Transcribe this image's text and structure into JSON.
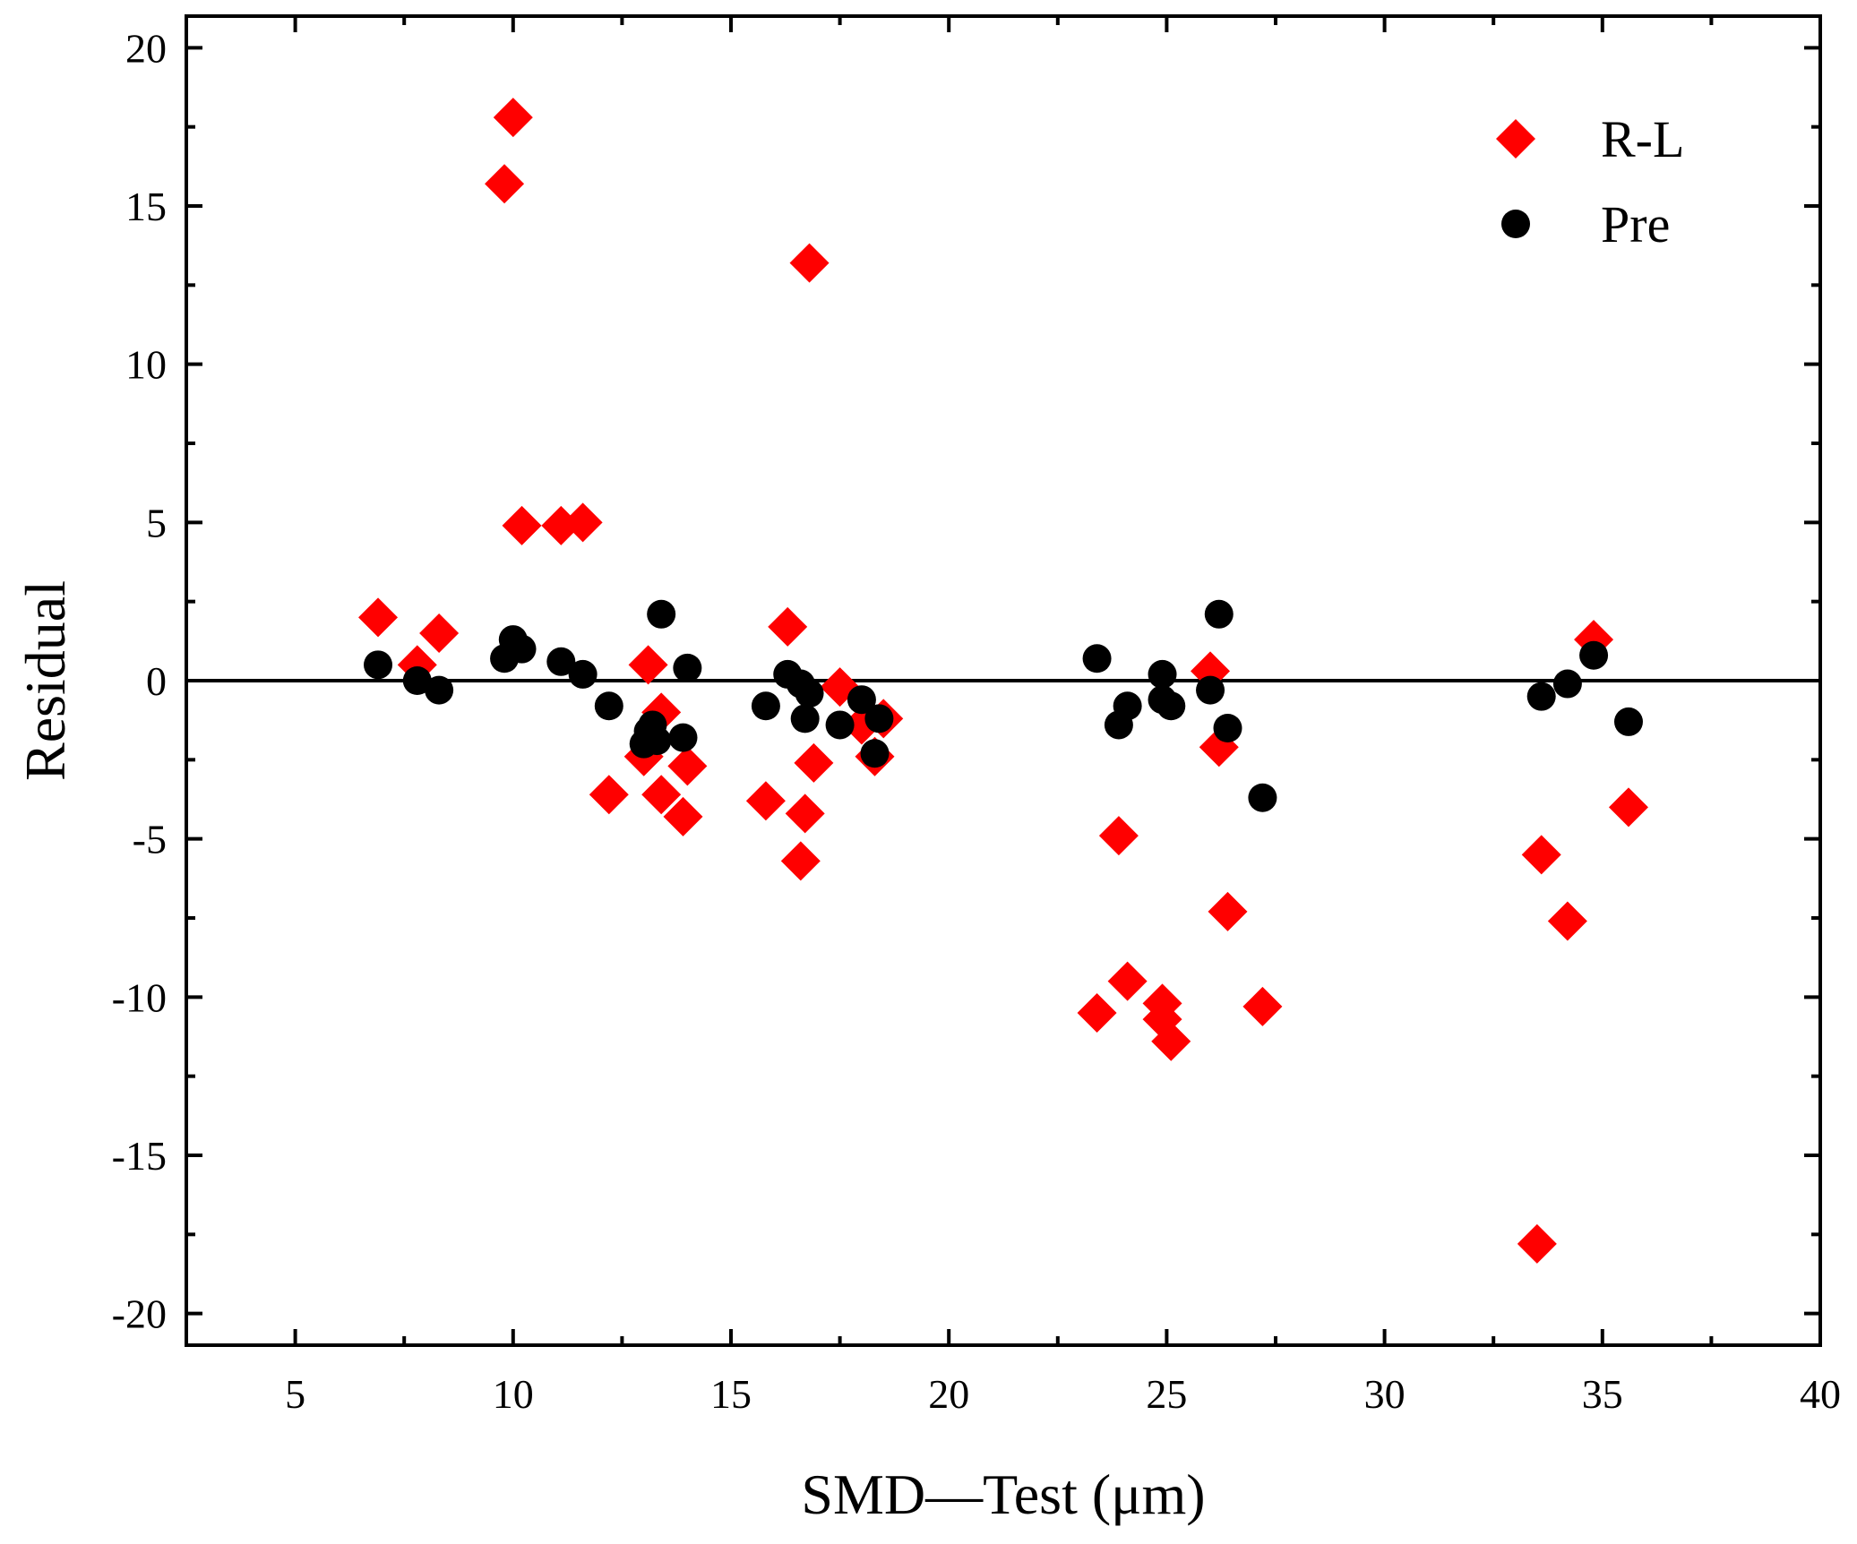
{
  "chart_data": {
    "type": "scatter",
    "title": "",
    "xlabel": "SMD—Test (μm)",
    "ylabel": "Residual",
    "xlim": [
      2.5,
      40
    ],
    "ylim": [
      -21,
      21
    ],
    "xticks": [
      5,
      10,
      15,
      20,
      25,
      30,
      35,
      40
    ],
    "yticks": [
      20,
      15,
      10,
      5,
      0,
      -5,
      -10,
      -15,
      -20
    ],
    "xtick_labels": [
      "5",
      "10",
      "15",
      "20",
      "25",
      "30",
      "35",
      "40"
    ],
    "ytick_labels": [
      "20",
      "15",
      "10",
      "5",
      "0",
      "-5",
      "-10",
      "-15",
      "-20"
    ],
    "reference_line_y": 0,
    "legend_position": "top-right",
    "series": [
      {
        "name": "R-L",
        "marker": "diamond",
        "color": "#ff0000",
        "points": [
          [
            6.9,
            2.0
          ],
          [
            7.8,
            0.5
          ],
          [
            8.3,
            1.5
          ],
          [
            9.8,
            15.7
          ],
          [
            10.0,
            17.8
          ],
          [
            10.2,
            4.9
          ],
          [
            11.1,
            4.9
          ],
          [
            11.6,
            5.0
          ],
          [
            12.2,
            -3.6
          ],
          [
            13.0,
            -2.4
          ],
          [
            13.1,
            0.5
          ],
          [
            13.4,
            -1.0
          ],
          [
            13.4,
            -3.6
          ],
          [
            13.9,
            -4.3
          ],
          [
            14.0,
            -2.7
          ],
          [
            15.8,
            -3.8
          ],
          [
            16.3,
            1.7
          ],
          [
            16.6,
            -5.7
          ],
          [
            16.7,
            -4.2
          ],
          [
            16.8,
            13.2
          ],
          [
            16.9,
            -2.6
          ],
          [
            17.5,
            -0.2
          ],
          [
            18.0,
            -1.4
          ],
          [
            18.3,
            -2.4
          ],
          [
            18.5,
            -1.2
          ],
          [
            23.4,
            -10.5
          ],
          [
            23.9,
            -4.9
          ],
          [
            24.1,
            -9.5
          ],
          [
            24.9,
            -10.2
          ],
          [
            24.9,
            -10.7
          ],
          [
            25.1,
            -11.4
          ],
          [
            26.0,
            0.3
          ],
          [
            26.2,
            -2.1
          ],
          [
            26.4,
            -7.3
          ],
          [
            27.2,
            -10.3
          ],
          [
            33.5,
            -17.8
          ],
          [
            33.6,
            -5.5
          ],
          [
            34.2,
            -7.6
          ],
          [
            34.8,
            1.3
          ],
          [
            35.6,
            -4.0
          ]
        ]
      },
      {
        "name": "Pre",
        "marker": "circle",
        "color": "#000000",
        "points": [
          [
            6.9,
            0.5
          ],
          [
            7.8,
            0.0
          ],
          [
            8.3,
            -0.3
          ],
          [
            9.8,
            0.7
          ],
          [
            10.0,
            1.3
          ],
          [
            10.2,
            1.0
          ],
          [
            11.1,
            0.6
          ],
          [
            11.6,
            0.2
          ],
          [
            12.2,
            -0.8
          ],
          [
            13.0,
            -2.0
          ],
          [
            13.1,
            -1.6
          ],
          [
            13.2,
            -1.4
          ],
          [
            13.3,
            -1.9
          ],
          [
            13.4,
            2.1
          ],
          [
            13.9,
            -1.8
          ],
          [
            14.0,
            0.4
          ],
          [
            15.8,
            -0.8
          ],
          [
            16.3,
            0.2
          ],
          [
            16.6,
            -0.1
          ],
          [
            16.7,
            -1.2
          ],
          [
            16.8,
            -0.4
          ],
          [
            17.5,
            -1.4
          ],
          [
            18.0,
            -0.6
          ],
          [
            18.3,
            -2.3
          ],
          [
            18.4,
            -1.2
          ],
          [
            23.4,
            0.7
          ],
          [
            23.9,
            -1.4
          ],
          [
            24.1,
            -0.8
          ],
          [
            24.9,
            0.2
          ],
          [
            24.9,
            -0.6
          ],
          [
            25.1,
            -0.8
          ],
          [
            26.0,
            -0.3
          ],
          [
            26.2,
            2.1
          ],
          [
            26.4,
            -1.5
          ],
          [
            27.2,
            -3.7
          ],
          [
            33.6,
            -0.5
          ],
          [
            34.2,
            -0.1
          ],
          [
            34.8,
            0.8
          ],
          [
            35.6,
            -1.3
          ]
        ]
      }
    ]
  }
}
